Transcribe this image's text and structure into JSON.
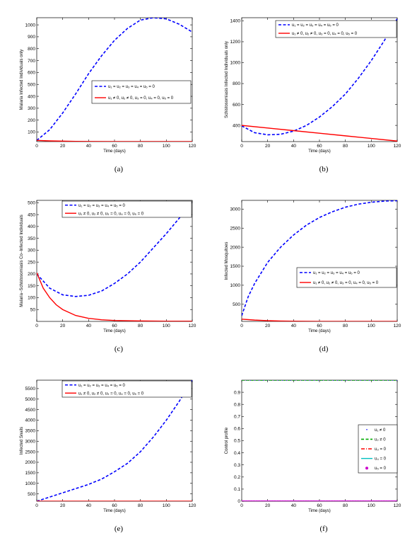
{
  "chart_data": [
    {
      "type": "line",
      "caption": "(a)",
      "xlabel": "Time (days)",
      "ylabel": "Malaria Infected Individuals only",
      "xlim": [
        0,
        120
      ],
      "ylim": [
        20,
        1060
      ],
      "xticks": [
        0,
        20,
        40,
        60,
        80,
        100,
        120
      ],
      "yticks": [
        100,
        200,
        300,
        400,
        500,
        600,
        700,
        800,
        900,
        1000
      ],
      "grid": false,
      "legend": "center-right",
      "series": [
        {
          "name": "u₁ = u₂ = u₃ = u₄ = u₅ = 0",
          "color": "#0000ff",
          "style": "dashed",
          "x": [
            0,
            10,
            20,
            30,
            40,
            50,
            60,
            70,
            80,
            90,
            100,
            110,
            120
          ],
          "y": [
            30,
            120,
            260,
            420,
            590,
            740,
            870,
            970,
            1040,
            1060,
            1050,
            1005,
            940
          ]
        },
        {
          "name": "u₁ ≠ 0, u₂ ≠ 0, u₃ = 0, u₄ = 0, u₅ = 0",
          "color": "#ff0000",
          "style": "solid",
          "x": [
            0,
            10,
            20,
            30,
            40,
            60,
            80,
            100,
            120
          ],
          "y": [
            30,
            26,
            24,
            22,
            21,
            20,
            20,
            20,
            20
          ]
        }
      ]
    },
    {
      "type": "line",
      "caption": "(b)",
      "xlabel": "Time (days)",
      "ylabel": "Schistosomiasis Infected Individuals only",
      "xlim": [
        0,
        120
      ],
      "ylim": [
        245,
        1430
      ],
      "xticks": [
        0,
        20,
        40,
        60,
        80,
        100,
        120
      ],
      "yticks": [
        400,
        600,
        800,
        1000,
        1200,
        1400
      ],
      "grid": false,
      "legend": "top-right",
      "series": [
        {
          "name": "u₁ = u₂ = u₃ = u₄ = u₅ = 0",
          "color": "#0000ff",
          "style": "dashed",
          "x": [
            0,
            10,
            20,
            30,
            40,
            50,
            60,
            70,
            80,
            90,
            100,
            110,
            120
          ],
          "y": [
            395,
            330,
            310,
            315,
            345,
            400,
            480,
            580,
            700,
            850,
            1020,
            1210,
            1420
          ]
        },
        {
          "name": "u₁ ≠ 0, u₂ ≠ 0, u₃ = 0, u₄ = 0, u₅ = 0",
          "color": "#ff0000",
          "style": "solid",
          "x": [
            0,
            20,
            40,
            60,
            80,
            100,
            120
          ],
          "y": [
            400,
            375,
            350,
            325,
            300,
            275,
            250
          ]
        }
      ]
    },
    {
      "type": "line",
      "caption": "(c)",
      "xlabel": "Time (days)",
      "ylabel": "Malaria−Schistosomiasis Co−Infected Individuals",
      "xlim": [
        0,
        120
      ],
      "ylim": [
        0,
        510
      ],
      "xticks": [
        0,
        20,
        40,
        60,
        80,
        100,
        120
      ],
      "yticks": [
        50,
        100,
        150,
        200,
        250,
        300,
        350,
        400,
        450,
        500
      ],
      "grid": false,
      "legend": "top-right",
      "series": [
        {
          "name": "u₁ = u₂ = u₃ = u₄ = u₅ = 0",
          "color": "#0000ff",
          "style": "dashed",
          "x": [
            0,
            10,
            20,
            30,
            40,
            50,
            60,
            70,
            80,
            90,
            100,
            110,
            120
          ],
          "y": [
            200,
            140,
            112,
            105,
            110,
            128,
            160,
            200,
            250,
            310,
            370,
            435,
            505
          ]
        },
        {
          "name": "u₁ ≠ 0, u₂ ≠ 0, u₃ = 0, u₄ = 0, u₅ = 0",
          "color": "#ff0000",
          "style": "solid",
          "x": [
            0,
            5,
            10,
            15,
            20,
            30,
            40,
            50,
            60,
            80,
            100,
            120
          ],
          "y": [
            205,
            140,
            100,
            70,
            50,
            25,
            13,
            7,
            4,
            2,
            1,
            1
          ]
        }
      ]
    },
    {
      "type": "line",
      "caption": "(d)",
      "xlabel": "Time (days)",
      "ylabel": "Infected Mosquitoes",
      "xlim": [
        0,
        120
      ],
      "ylim": [
        50,
        3230
      ],
      "xticks": [
        0,
        20,
        40,
        60,
        80,
        100,
        120
      ],
      "yticks": [
        500,
        1000,
        1500,
        2000,
        2500,
        3000
      ],
      "grid": false,
      "legend": "center-right",
      "series": [
        {
          "name": "u₁ = u₂ = u₃ = u₄ = u₅ = 0",
          "color": "#0000ff",
          "style": "dashed",
          "x": [
            0,
            5,
            10,
            20,
            30,
            40,
            50,
            60,
            70,
            80,
            90,
            100,
            110,
            120
          ],
          "y": [
            200,
            700,
            1050,
            1600,
            2000,
            2320,
            2580,
            2780,
            2930,
            3050,
            3130,
            3180,
            3210,
            3220
          ]
        },
        {
          "name": "u₁ ≠ 0, u₂ ≠ 0, u₃ = 0, u₄ = 0, u₅ = 0",
          "color": "#ff0000",
          "style": "solid",
          "x": [
            0,
            10,
            20,
            30,
            40,
            60,
            80,
            100,
            120
          ],
          "y": [
            110,
            85,
            70,
            60,
            55,
            52,
            51,
            50,
            50
          ]
        }
      ]
    },
    {
      "type": "line",
      "caption": "(e)",
      "xlabel": "Time (days)",
      "ylabel": "Infected Snails",
      "xlim": [
        0,
        120
      ],
      "ylim": [
        150,
        5900
      ],
      "xticks": [
        0,
        20,
        40,
        60,
        80,
        100,
        120
      ],
      "yticks": [
        500,
        1000,
        1500,
        2000,
        2500,
        3000,
        3500,
        4000,
        4500,
        5000,
        5500
      ],
      "grid": false,
      "legend": "top-right",
      "series": [
        {
          "name": "u₁ = u₂ = u₃ = u₄ = u₅ = 0",
          "color": "#0000ff",
          "style": "dashed",
          "x": [
            0,
            10,
            20,
            30,
            40,
            50,
            60,
            70,
            80,
            90,
            100,
            110,
            120
          ],
          "y": [
            150,
            350,
            550,
            750,
            950,
            1200,
            1550,
            1950,
            2500,
            3200,
            4000,
            4900,
            5900
          ]
        },
        {
          "name": "u₁ ≠ 0, u₂ ≠ 0, u₃ = 0, u₄ = 0, u₅ = 0",
          "color": "#ff0000",
          "style": "solid",
          "x": [
            0,
            120
          ],
          "y": [
            150,
            150
          ]
        }
      ]
    },
    {
      "type": "line",
      "caption": "(f)",
      "xlabel": "Time (days)",
      "ylabel": "Control profile",
      "xlim": [
        0,
        120
      ],
      "ylim": [
        0,
        1
      ],
      "xticks": [
        0,
        20,
        40,
        60,
        80,
        100,
        120
      ],
      "yticks": [
        0,
        0.1,
        0.2,
        0.3,
        0.4,
        0.5,
        0.6,
        0.7,
        0.8,
        0.9
      ],
      "grid": false,
      "legend": "center-right",
      "series": [
        {
          "name": "u₁ ≠ 0",
          "color": "#0000ff",
          "style": "dotted",
          "x": [
            0,
            120
          ],
          "y": [
            1,
            1
          ]
        },
        {
          "name": "u₂ ≠ 0",
          "color": "#00aa00",
          "style": "dashed",
          "x": [
            0,
            120
          ],
          "y": [
            1,
            1
          ]
        },
        {
          "name": "u₃ = 0",
          "color": "#ff0000",
          "style": "dashdot",
          "x": [
            0,
            120
          ],
          "y": [
            0,
            0
          ]
        },
        {
          "name": "u₄ = 0",
          "color": "#00c0c0",
          "style": "solid",
          "x": [
            0,
            120
          ],
          "y": [
            0,
            0
          ]
        },
        {
          "name": "u₅ = 0",
          "color": "#cc00cc",
          "style": "markers",
          "x": [
            0,
            120
          ],
          "y": [
            0,
            0
          ]
        }
      ]
    }
  ]
}
